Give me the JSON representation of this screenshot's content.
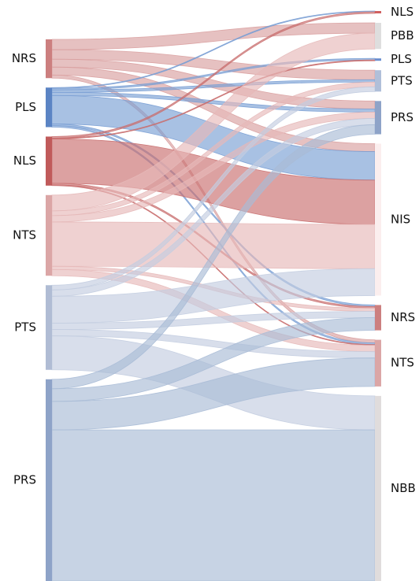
{
  "chart_data": {
    "type": "sankey",
    "nodes": [
      {
        "name": "NRS",
        "color": "#cc7f7f",
        "column": 0
      },
      {
        "name": "PLS",
        "color": "#5b84c4",
        "column": 0
      },
      {
        "name": "NLS",
        "color": "#c05a5a",
        "column": 0
      },
      {
        "name": "NTS",
        "color": "#dba6a6",
        "column": 0
      },
      {
        "name": "PTS",
        "color": "#b0bcd4",
        "column": 0
      },
      {
        "name": "PRS",
        "color": "#8ea3c8",
        "column": 0
      },
      {
        "name": "NLS",
        "color": "#d06060",
        "column": 1
      },
      {
        "name": "PBB",
        "color": "#dedede",
        "column": 1
      },
      {
        "name": "PLS",
        "color": "#6b8fd0",
        "column": 1
      },
      {
        "name": "PTS",
        "color": "#b0bfd9",
        "column": 1
      },
      {
        "name": "PRS",
        "color": "#8ea3c8",
        "column": 1
      },
      {
        "name": "NIS",
        "color": "#fbeeee",
        "column": 1
      },
      {
        "name": "NRS",
        "color": "#cc7f7f",
        "column": 1
      },
      {
        "name": "NTS",
        "color": "#dba6a6",
        "column": 1
      },
      {
        "name": "NBB",
        "color": "#e0dcdc",
        "column": 1
      }
    ],
    "links": [
      {
        "source": 0,
        "target": 7,
        "value": 13,
        "color": "#d9a0a0"
      },
      {
        "source": 0,
        "target": 9,
        "value": 12,
        "color": "#d9a0a0"
      },
      {
        "source": 0,
        "target": 10,
        "value": 10,
        "color": "#d9a0a0"
      },
      {
        "source": 0,
        "target": 11,
        "value": 10,
        "color": "#d9a0a0"
      },
      {
        "source": 0,
        "target": 13,
        "value": 4,
        "color": "#d9a0a0"
      },
      {
        "source": 1,
        "target": 6,
        "value": 1,
        "color": "#7a9fd4"
      },
      {
        "source": 1,
        "target": 8,
        "value": 2,
        "color": "#7a9fd4"
      },
      {
        "source": 1,
        "target": 9,
        "value": 3,
        "color": "#7a9fd4"
      },
      {
        "source": 1,
        "target": 10,
        "value": 4,
        "color": "#7a9fd4"
      },
      {
        "source": 1,
        "target": 11,
        "value": 36,
        "color": "#7a9fd4"
      },
      {
        "source": 1,
        "target": 12,
        "value": 2,
        "color": "#7a9fd4"
      },
      {
        "source": 1,
        "target": 13,
        "value": 2,
        "color": "#7a9fd4"
      },
      {
        "source": 2,
        "target": 6,
        "value": 2,
        "color": "#c96f6f"
      },
      {
        "source": 2,
        "target": 8,
        "value": 1,
        "color": "#c96f6f"
      },
      {
        "source": 2,
        "target": 11,
        "value": 56,
        "color": "#c96f6f"
      },
      {
        "source": 2,
        "target": 12,
        "value": 2,
        "color": "#c96f6f"
      },
      {
        "source": 2,
        "target": 13,
        "value": 1,
        "color": "#c96f6f"
      },
      {
        "source": 3,
        "target": 7,
        "value": 20,
        "color": "#e6b9b9"
      },
      {
        "source": 3,
        "target": 9,
        "value": 6,
        "color": "#e6b9b9"
      },
      {
        "source": 3,
        "target": 10,
        "value": 8,
        "color": "#e6b9b9"
      },
      {
        "source": 3,
        "target": 11,
        "value": 56,
        "color": "#e6b9b9"
      },
      {
        "source": 3,
        "target": 12,
        "value": 4,
        "color": "#e6b9b9"
      },
      {
        "source": 3,
        "target": 13,
        "value": 8,
        "color": "#e6b9b9"
      },
      {
        "source": 4,
        "target": 9,
        "value": 6,
        "color": "#c3cde0"
      },
      {
        "source": 4,
        "target": 10,
        "value": 8,
        "color": "#c3cde0"
      },
      {
        "source": 4,
        "target": 11,
        "value": 34,
        "color": "#c3cde0"
      },
      {
        "source": 4,
        "target": 12,
        "value": 8,
        "color": "#c3cde0"
      },
      {
        "source": 4,
        "target": 13,
        "value": 8,
        "color": "#c3cde0"
      },
      {
        "source": 4,
        "target": 14,
        "value": 43,
        "color": "#c3cde0"
      },
      {
        "source": 5,
        "target": 10,
        "value": 12,
        "color": "#a9bbd6"
      },
      {
        "source": 5,
        "target": 12,
        "value": 16,
        "color": "#a9bbd6"
      },
      {
        "source": 5,
        "target": 13,
        "value": 36,
        "color": "#a9bbd6"
      },
      {
        "source": 5,
        "target": 14,
        "value": 191,
        "color": "#a9bbd6"
      }
    ]
  }
}
